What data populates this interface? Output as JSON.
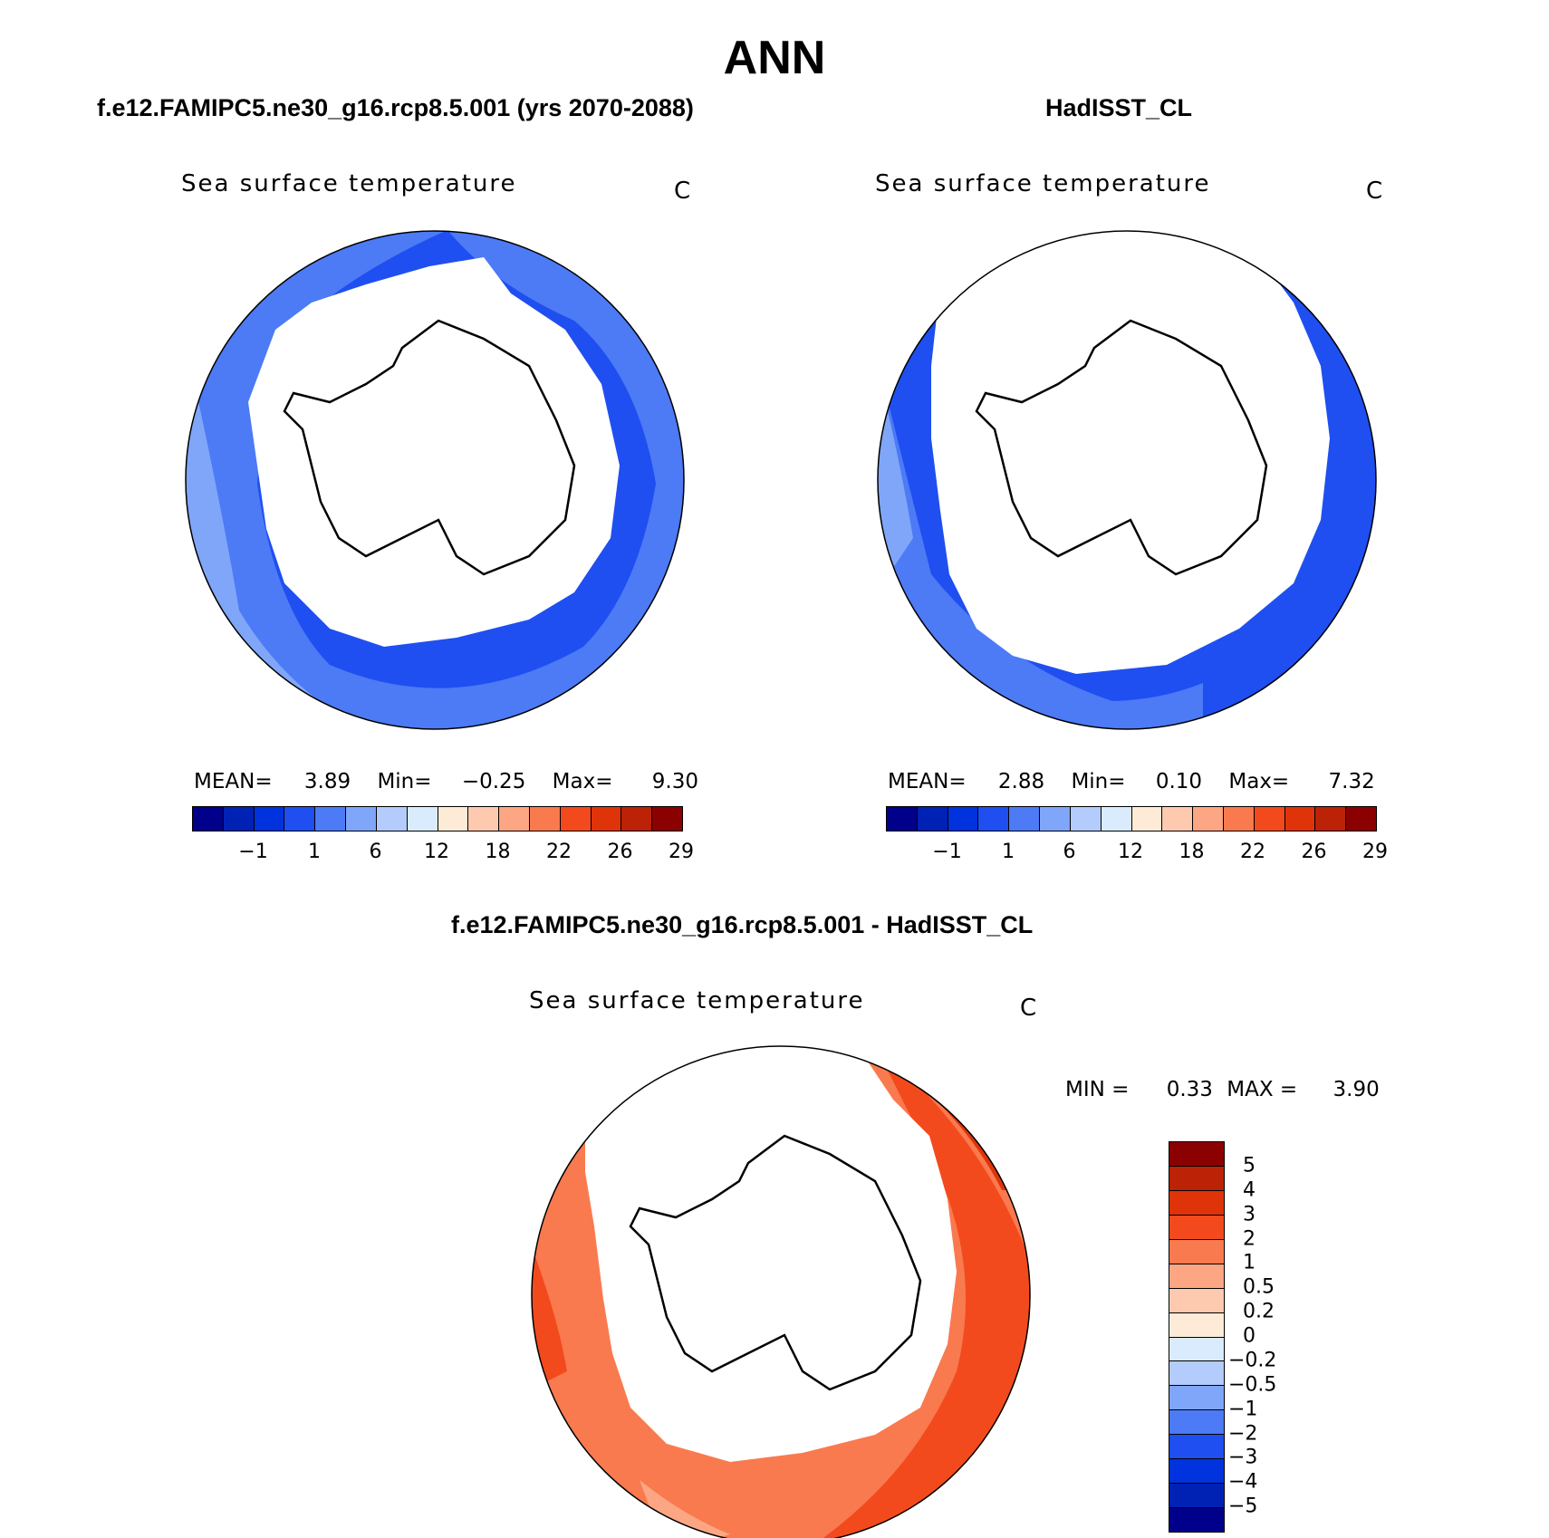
{
  "figure": {
    "title": "ANN",
    "panel1": {
      "title": "f.e12.FAMIPC5.ne30_g16.rcp8.5.001 (yrs 2070-2088)",
      "variable": "Sea surface temperature",
      "units": "C",
      "mean_label": "MEAN=",
      "mean": "3.89",
      "min_label": "Min=",
      "min": "−0.25",
      "max_label": "Max=",
      "max": "9.30"
    },
    "panel2": {
      "title": "HadISST_CL",
      "variable": "Sea surface temperature",
      "units": "C",
      "mean_label": "MEAN=",
      "mean": "2.88",
      "min_label": "Min=",
      "min": "0.10",
      "max_label": "Max=",
      "max": "7.32"
    },
    "panel3": {
      "title": "f.e12.FAMIPC5.ne30_g16.rcp8.5.001 - HadISST_CL",
      "variable": "Sea surface temperature",
      "units": "C",
      "min_label": "MIN =",
      "min": "0.33",
      "max_label": "MAX =",
      "max": "3.90"
    }
  },
  "colorbar_abs": {
    "colors": [
      "#00008b",
      "#0022b4",
      "#0033dd",
      "#1f4ff0",
      "#4d7af5",
      "#80a6f9",
      "#b3ccfc",
      "#d9ebfd",
      "#fdebd8",
      "#fdcab0",
      "#fca684",
      "#f97a4f",
      "#f34a1d",
      "#df3409",
      "#bb2206",
      "#8b0000"
    ],
    "tick_labels": [
      "−1",
      "1",
      "6",
      "12",
      "18",
      "22",
      "26",
      "29"
    ]
  },
  "colorbar_diff": {
    "colors": [
      "#8b0000",
      "#bb2206",
      "#df3409",
      "#f34a1d",
      "#f97a4f",
      "#fca684",
      "#fdcab0",
      "#fdebd8",
      "#d9ebfd",
      "#b3ccfc",
      "#80a6f9",
      "#4d7af5",
      "#1f4ff0",
      "#0033dd",
      "#0022b4",
      "#00008b"
    ],
    "tick_labels": [
      "5",
      "4",
      "3",
      "2",
      "1",
      "0.5",
      "0.2",
      "0",
      "−0.2",
      "−0.5",
      "−1",
      "−2",
      "−3",
      "−4",
      "−5"
    ]
  },
  "maps": {
    "panel1": {
      "ring_colors": [
        "#4d7af5",
        "#1f4ff0",
        "#4d7af5",
        "#80a6f9"
      ]
    },
    "panel2": {
      "ring_colors": [
        "#1f4ff0",
        "#4d7af5",
        "#80a6f9"
      ]
    },
    "panel3": {
      "ring_colors": [
        "#f34a1d",
        "#f97a4f",
        "#fca684"
      ]
    }
  }
}
